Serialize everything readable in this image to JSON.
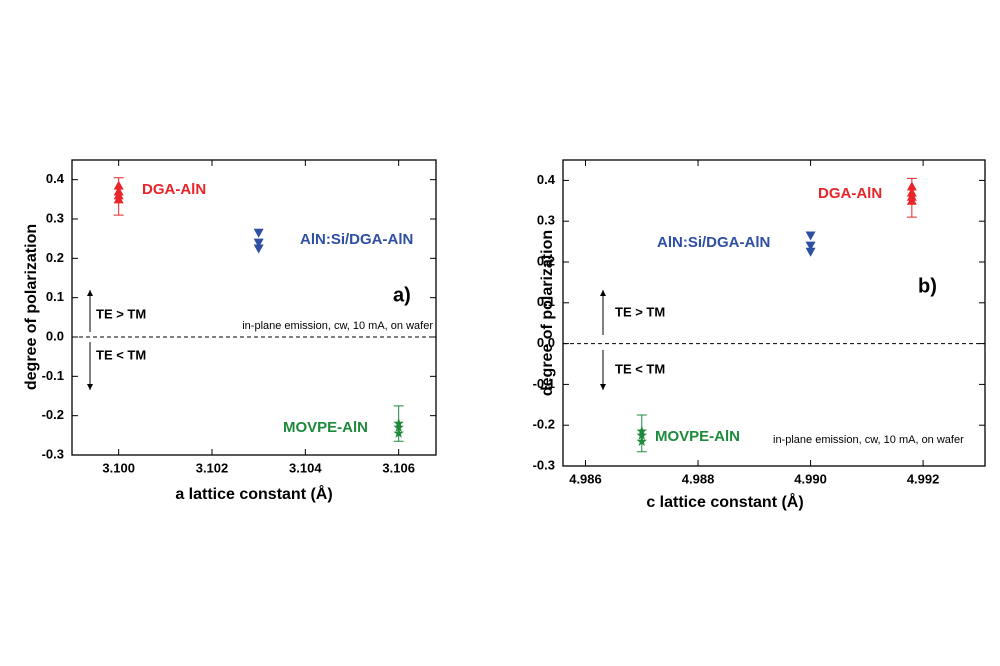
{
  "chart_data": [
    {
      "type": "scatter",
      "x_label": "a lattice constant (Å)",
      "y_label": "degree of polarization",
      "xlim": [
        3.099,
        3.1068
      ],
      "ylim": [
        -0.3,
        0.45
      ],
      "xticks": [
        {
          "value": 3.1,
          "label": "3.100"
        },
        {
          "value": 3.102,
          "label": "3.102"
        },
        {
          "value": 3.104,
          "label": "3.104"
        },
        {
          "value": 3.106,
          "label": "3.106"
        }
      ],
      "yticks": [
        {
          "value": -0.3,
          "label": "-0.3"
        },
        {
          "value": -0.2,
          "label": "-0.2"
        },
        {
          "value": -0.1,
          "label": "-0.1"
        },
        {
          "value": 0,
          "label": "0.0"
        },
        0.1,
        0.2,
        0.3,
        0.4
      ],
      "series": [
        {
          "name": "DGA-AlN",
          "color": "#e8262a",
          "marker": "triangle-up",
          "x": [
            3.1,
            3.1,
            3.1,
            3.1
          ],
          "values": [
            0.385,
            0.37,
            0.36,
            0.35
          ],
          "error": {
            "x": 3.1,
            "low": 0.31,
            "high": 0.405
          }
        },
        {
          "name": "AlN:Si/DGA-AlN",
          "color": "#2e4fa3",
          "marker": "triangle-down",
          "x": [
            3.103,
            3.103,
            3.103
          ],
          "values": [
            0.265,
            0.24,
            0.225
          ]
        },
        {
          "name": "MOVPE-AlN",
          "color": "#1e8a3c",
          "marker": "star",
          "x": [
            3.106,
            3.106,
            3.106
          ],
          "values": [
            -0.22,
            -0.23,
            -0.245
          ],
          "error": {
            "x": 3.106,
            "low": -0.265,
            "high": -0.175
          }
        }
      ],
      "annotations": [
        "a)",
        "TE > TM",
        "TE < TM",
        "in-plane emission, cw, 10 mA, on wafer"
      ]
    },
    {
      "type": "scatter",
      "x_label": "c lattice constant (Å)",
      "y_label": "degree of polarization",
      "xlim": [
        4.9856,
        4.9931
      ],
      "ylim": [
        -0.3,
        0.45
      ],
      "xticks": [
        {
          "value": 4.986,
          "label": "4.986"
        },
        {
          "value": 4.988,
          "label": "4.988"
        },
        {
          "value": 4.99,
          "label": "4.990"
        },
        {
          "value": 4.992,
          "label": "4.992"
        }
      ],
      "yticks": [
        {
          "value": -0.3,
          "label": "-0.3"
        },
        {
          "value": -0.2,
          "label": "-0.2"
        },
        {
          "value": -0.1,
          "label": "-0.1"
        },
        {
          "value": 0,
          "label": "0.0"
        },
        0.1,
        0.2,
        0.3,
        0.4
      ],
      "series": [
        {
          "name": "DGA-AlN",
          "color": "#e8262a",
          "marker": "triangle-up",
          "x": [
            4.9918,
            4.9918,
            4.9918,
            4.9918
          ],
          "values": [
            0.385,
            0.37,
            0.36,
            0.35
          ],
          "error": {
            "x": 4.9918,
            "low": 0.31,
            "high": 0.405
          }
        },
        {
          "name": "AlN:Si/DGA-AlN",
          "color": "#2e4fa3",
          "marker": "triangle-down",
          "x": [
            4.99,
            4.99,
            4.99
          ],
          "values": [
            0.265,
            0.24,
            0.225
          ]
        },
        {
          "name": "MOVPE-AlN",
          "color": "#1e8a3c",
          "marker": "star",
          "x": [
            4.987,
            4.987,
            4.987
          ],
          "values": [
            -0.215,
            -0.225,
            -0.24
          ],
          "error": {
            "x": 4.987,
            "low": -0.265,
            "high": -0.175
          }
        }
      ],
      "annotations": [
        "b)",
        "TE > TM",
        "TE < TM",
        "in-plane emission, cw, 10 mA, on wafer"
      ]
    }
  ]
}
